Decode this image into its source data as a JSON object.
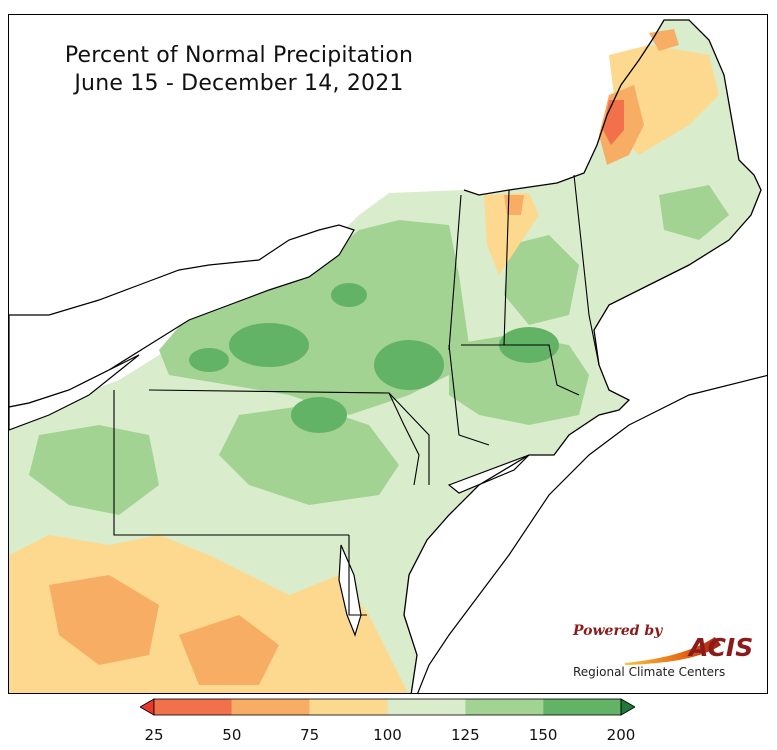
{
  "title": {
    "line1": "Percent of Normal Precipitation",
    "line2": "June 15 - December 14, 2021"
  },
  "logo": {
    "powered_by": "Powered by",
    "name": "ACIS",
    "subtitle": "Regional Climate Centers"
  },
  "legend": {
    "ticks": [
      "25",
      "50",
      "75",
      "100",
      "125",
      "150",
      "200"
    ],
    "bins": [
      {
        "range": "<25",
        "color": "#e8382c"
      },
      {
        "range": "25-50",
        "color": "#f2704a"
      },
      {
        "range": "50-75",
        "color": "#f7ad63"
      },
      {
        "range": "75-100",
        "color": "#fcd98e"
      },
      {
        "range": "100-125",
        "color": "#d9edcc"
      },
      {
        "range": "125-150",
        "color": "#a3d392"
      },
      {
        "range": "150-200",
        "color": "#63b366"
      },
      {
        "range": ">200",
        "color": "#1f7a3a"
      }
    ]
  },
  "colors": {
    "water": "#ffffff",
    "border": "#000000"
  }
}
